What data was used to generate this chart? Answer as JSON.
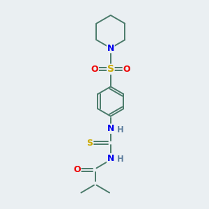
{
  "background_color": "#eaeff2",
  "atom_colors": {
    "C": "#4a7a6a",
    "N": "#0000ee",
    "O": "#ee0000",
    "S": "#ccaa00",
    "H": "#6080a0"
  },
  "bond_color": "#4a7a6a",
  "bond_lw": 1.4,
  "figsize": [
    3.0,
    3.0
  ],
  "dpi": 100
}
